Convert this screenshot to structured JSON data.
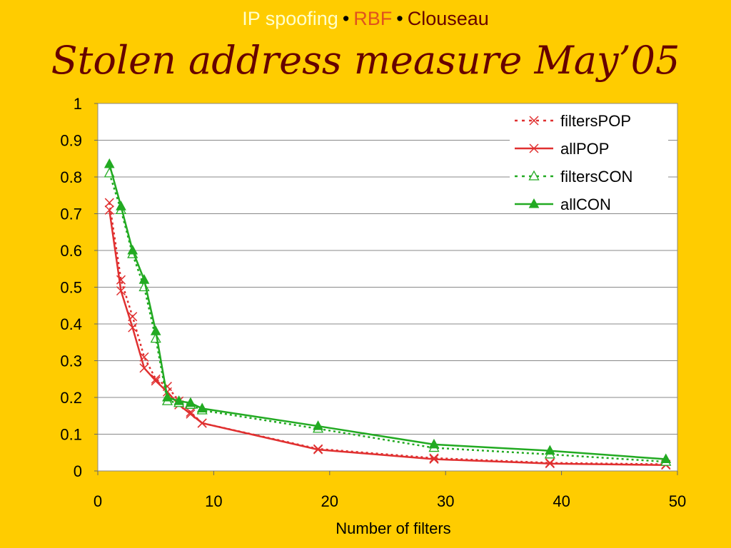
{
  "header": {
    "parts": [
      {
        "text": "IP spoofing",
        "color": "#FFFFCC"
      },
      {
        "text": "RBF",
        "color": "#E0531E"
      },
      {
        "text": "Clouseau",
        "color": "#660000"
      }
    ],
    "separator": "•"
  },
  "title": "Stolen address measure May’05",
  "chart_data": {
    "type": "line",
    "title": "",
    "xlabel": "Number of filters",
    "ylabel": "",
    "xlim": [
      0,
      50
    ],
    "ylim": [
      0,
      1
    ],
    "x_ticks": [
      "0",
      "10",
      "20",
      "30",
      "40",
      "50"
    ],
    "y_ticks": [
      "0",
      "0.1",
      "0.2",
      "0.3",
      "0.4",
      "0.5",
      "0.6",
      "0.7",
      "0.8",
      "0.9",
      "1"
    ],
    "grid": "horizontal",
    "legend_position": "top-right",
    "series": [
      {
        "name": "filtersPOP",
        "color": "#E03030",
        "dashed": true,
        "marker": "x",
        "x": [
          1,
          2,
          3,
          4,
          5,
          6,
          7,
          8,
          9,
          19,
          29,
          39,
          49
        ],
        "y": [
          0.73,
          0.52,
          0.42,
          0.31,
          0.25,
          0.23,
          0.19,
          0.16,
          0.13,
          0.06,
          0.035,
          0.022,
          0.018
        ]
      },
      {
        "name": "allPOP",
        "color": "#E03030",
        "dashed": false,
        "marker": "x",
        "x": [
          1,
          2,
          3,
          4,
          5,
          6,
          7,
          8,
          9,
          19,
          29,
          39,
          49
        ],
        "y": [
          0.71,
          0.49,
          0.39,
          0.28,
          0.245,
          0.215,
          0.18,
          0.155,
          0.13,
          0.058,
          0.032,
          0.02,
          0.016
        ]
      },
      {
        "name": "filtersCON",
        "color": "#22AA22",
        "dashed": true,
        "marker": "triangle-open",
        "x": [
          1,
          2,
          3,
          4,
          5,
          6,
          7,
          8,
          9,
          19,
          29,
          39,
          49
        ],
        "y": [
          0.81,
          0.71,
          0.59,
          0.5,
          0.36,
          0.19,
          0.185,
          0.18,
          0.165,
          0.115,
          0.063,
          0.045,
          0.025
        ]
      },
      {
        "name": "allCON",
        "color": "#22AA22",
        "dashed": false,
        "marker": "triangle-filled",
        "x": [
          1,
          2,
          3,
          4,
          5,
          6,
          7,
          8,
          9,
          19,
          29,
          39,
          49
        ],
        "y": [
          0.835,
          0.72,
          0.6,
          0.52,
          0.38,
          0.2,
          0.19,
          0.185,
          0.17,
          0.122,
          0.072,
          0.055,
          0.032
        ]
      }
    ]
  }
}
